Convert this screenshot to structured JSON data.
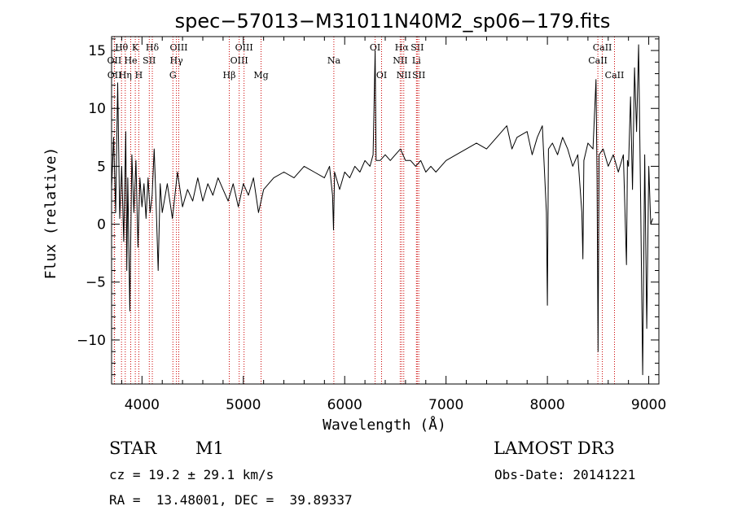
{
  "chart_data": {
    "type": "line",
    "title": "spec−57013−M31011N40M2_sp06−179.fits",
    "xlabel": "Wavelength (Å)",
    "ylabel": "Flux (relative)",
    "xlim": [
      3700,
      9100
    ],
    "ylim": [
      -13.8,
      16.2
    ],
    "x_ticks": [
      4000,
      5000,
      6000,
      7000,
      8000,
      9000
    ],
    "y_ticks": [
      -10,
      -5,
      0,
      5,
      10,
      15
    ],
    "grid": false,
    "line_color": "#000000",
    "marker_color": "#cc0000",
    "series": [
      {
        "values": [
          [
            3700,
            3.0
          ],
          [
            3720,
            7.5
          ],
          [
            3740,
            1.0
          ],
          [
            3760,
            12.2
          ],
          [
            3780,
            0.5
          ],
          [
            3800,
            5.0
          ],
          [
            3820,
            -1.5
          ],
          [
            3840,
            8.0
          ],
          [
            3850,
            -4.0
          ],
          [
            3860,
            4.0
          ],
          [
            3880,
            -7.5
          ],
          [
            3900,
            6.0
          ],
          [
            3920,
            1.0
          ],
          [
            3940,
            5.5
          ],
          [
            3960,
            -2.0
          ],
          [
            3980,
            4.0
          ],
          [
            4000,
            1.5
          ],
          [
            4020,
            3.5
          ],
          [
            4040,
            0.5
          ],
          [
            4060,
            4.0
          ],
          [
            4080,
            1.0
          ],
          [
            4100,
            2.5
          ],
          [
            4120,
            6.5
          ],
          [
            4140,
            1.5
          ],
          [
            4160,
            -4.0
          ],
          [
            4180,
            3.5
          ],
          [
            4200,
            1.0
          ],
          [
            4250,
            3.5
          ],
          [
            4300,
            0.5
          ],
          [
            4350,
            4.5
          ],
          [
            4400,
            1.5
          ],
          [
            4450,
            3.0
          ],
          [
            4500,
            2.0
          ],
          [
            4550,
            4.0
          ],
          [
            4600,
            2.0
          ],
          [
            4650,
            3.5
          ],
          [
            4700,
            2.5
          ],
          [
            4750,
            4.0
          ],
          [
            4800,
            3.0
          ],
          [
            4850,
            2.0
          ],
          [
            4900,
            3.5
          ],
          [
            4950,
            1.5
          ],
          [
            5000,
            3.5
          ],
          [
            5050,
            2.5
          ],
          [
            5100,
            4.0
          ],
          [
            5150,
            1.0
          ],
          [
            5200,
            3.0
          ],
          [
            5300,
            4.0
          ],
          [
            5400,
            4.5
          ],
          [
            5500,
            4.0
          ],
          [
            5600,
            5.0
          ],
          [
            5700,
            4.5
          ],
          [
            5800,
            4.0
          ],
          [
            5850,
            5.0
          ],
          [
            5880,
            2.5
          ],
          [
            5890,
            -0.5
          ],
          [
            5900,
            4.5
          ],
          [
            5950,
            3.0
          ],
          [
            6000,
            4.5
          ],
          [
            6050,
            4.0
          ],
          [
            6100,
            5.0
          ],
          [
            6150,
            4.5
          ],
          [
            6200,
            5.5
          ],
          [
            6250,
            5.0
          ],
          [
            6280,
            6.0
          ],
          [
            6300,
            15.0
          ],
          [
            6310,
            5.5
          ],
          [
            6350,
            5.5
          ],
          [
            6400,
            6.0
          ],
          [
            6450,
            5.5
          ],
          [
            6500,
            6.0
          ],
          [
            6550,
            6.5
          ],
          [
            6600,
            5.5
          ],
          [
            6650,
            5.5
          ],
          [
            6700,
            5.0
          ],
          [
            6750,
            5.5
          ],
          [
            6800,
            4.5
          ],
          [
            6850,
            5.0
          ],
          [
            6900,
            4.5
          ],
          [
            6950,
            5.0
          ],
          [
            7000,
            5.5
          ],
          [
            7100,
            6.0
          ],
          [
            7200,
            6.5
          ],
          [
            7300,
            7.0
          ],
          [
            7400,
            6.5
          ],
          [
            7500,
            7.5
          ],
          [
            7600,
            8.5
          ],
          [
            7650,
            6.5
          ],
          [
            7700,
            7.5
          ],
          [
            7800,
            8.0
          ],
          [
            7850,
            6.0
          ],
          [
            7900,
            7.5
          ],
          [
            7950,
            8.5
          ],
          [
            7990,
            1.0
          ],
          [
            8000,
            -7.0
          ],
          [
            8010,
            6.5
          ],
          [
            8050,
            7.0
          ],
          [
            8100,
            6.0
          ],
          [
            8150,
            7.5
          ],
          [
            8200,
            6.5
          ],
          [
            8250,
            5.0
          ],
          [
            8300,
            6.0
          ],
          [
            8340,
            1.0
          ],
          [
            8350,
            -3.0
          ],
          [
            8360,
            5.5
          ],
          [
            8400,
            7.0
          ],
          [
            8450,
            6.5
          ],
          [
            8480,
            12.5
          ],
          [
            8490,
            4.0
          ],
          [
            8500,
            -11.0
          ],
          [
            8510,
            6.0
          ],
          [
            8550,
            6.5
          ],
          [
            8600,
            5.0
          ],
          [
            8650,
            6.0
          ],
          [
            8700,
            4.5
          ],
          [
            8750,
            6.0
          ],
          [
            8780,
            -3.5
          ],
          [
            8790,
            5.5
          ],
          [
            8800,
            5.0
          ],
          [
            8820,
            11.0
          ],
          [
            8840,
            3.0
          ],
          [
            8860,
            13.5
          ],
          [
            8880,
            8.0
          ],
          [
            8900,
            15.5
          ],
          [
            8920,
            2.0
          ],
          [
            8940,
            -13.0
          ],
          [
            8960,
            6.0
          ],
          [
            8980,
            -9.0
          ],
          [
            9000,
            5.0
          ],
          [
            9020,
            0.0
          ],
          [
            9040,
            0.5
          ]
        ]
      }
    ],
    "line_markers": [
      {
        "label": "Hθ",
        "wl": 3798,
        "row": 0
      },
      {
        "label": "OII",
        "wl": 3727,
        "row": 1
      },
      {
        "label": "OII",
        "wl": 3729,
        "row": 2
      },
      {
        "label": "K",
        "wl": 3934,
        "row": 0
      },
      {
        "label": "He",
        "wl": 3889,
        "row": 1
      },
      {
        "label": "Hη",
        "wl": 3835,
        "row": 2
      },
      {
        "label": "Hδ",
        "wl": 4102,
        "row": 0
      },
      {
        "label": "SII",
        "wl": 4072,
        "row": 1
      },
      {
        "label": "H",
        "wl": 3969,
        "row": 2
      },
      {
        "label": "OIII",
        "wl": 4363,
        "row": 0
      },
      {
        "label": "Hγ",
        "wl": 4340,
        "row": 1
      },
      {
        "label": "G",
        "wl": 4305,
        "row": 2
      },
      {
        "label": "OIII",
        "wl": 5007,
        "row": 0
      },
      {
        "label": "OIII",
        "wl": 4959,
        "row": 1
      },
      {
        "label": "Hβ",
        "wl": 4861,
        "row": 2
      },
      {
        "label": "Mg",
        "wl": 5175,
        "row": 2
      },
      {
        "label": "Na",
        "wl": 5893,
        "row": 1
      },
      {
        "label": "OI",
        "wl": 6300,
        "row": 0
      },
      {
        "label": "OI",
        "wl": 6364,
        "row": 2
      },
      {
        "label": "Hα",
        "wl": 6563,
        "row": 0
      },
      {
        "label": "SII",
        "wl": 6716,
        "row": 0
      },
      {
        "label": "NII",
        "wl": 6548,
        "row": 1
      },
      {
        "label": "Li",
        "wl": 6708,
        "row": 1
      },
      {
        "label": "NII",
        "wl": 6583,
        "row": 2
      },
      {
        "label": "SII",
        "wl": 6731,
        "row": 2
      },
      {
        "label": "CaII",
        "wl": 8542,
        "row": 0
      },
      {
        "label": "CaII",
        "wl": 8498,
        "row": 1
      },
      {
        "label": "CaII",
        "wl": 8662,
        "row": 2
      }
    ]
  },
  "info": {
    "object_type": "STAR",
    "subclass": "M1",
    "survey": "LAMOST DR3",
    "cz": "cz = 19.2 ± 29.1 km/s",
    "obs_date": "Obs-Date: 20141221",
    "coords": "RA =  13.48001, DEC =  39.89337"
  }
}
